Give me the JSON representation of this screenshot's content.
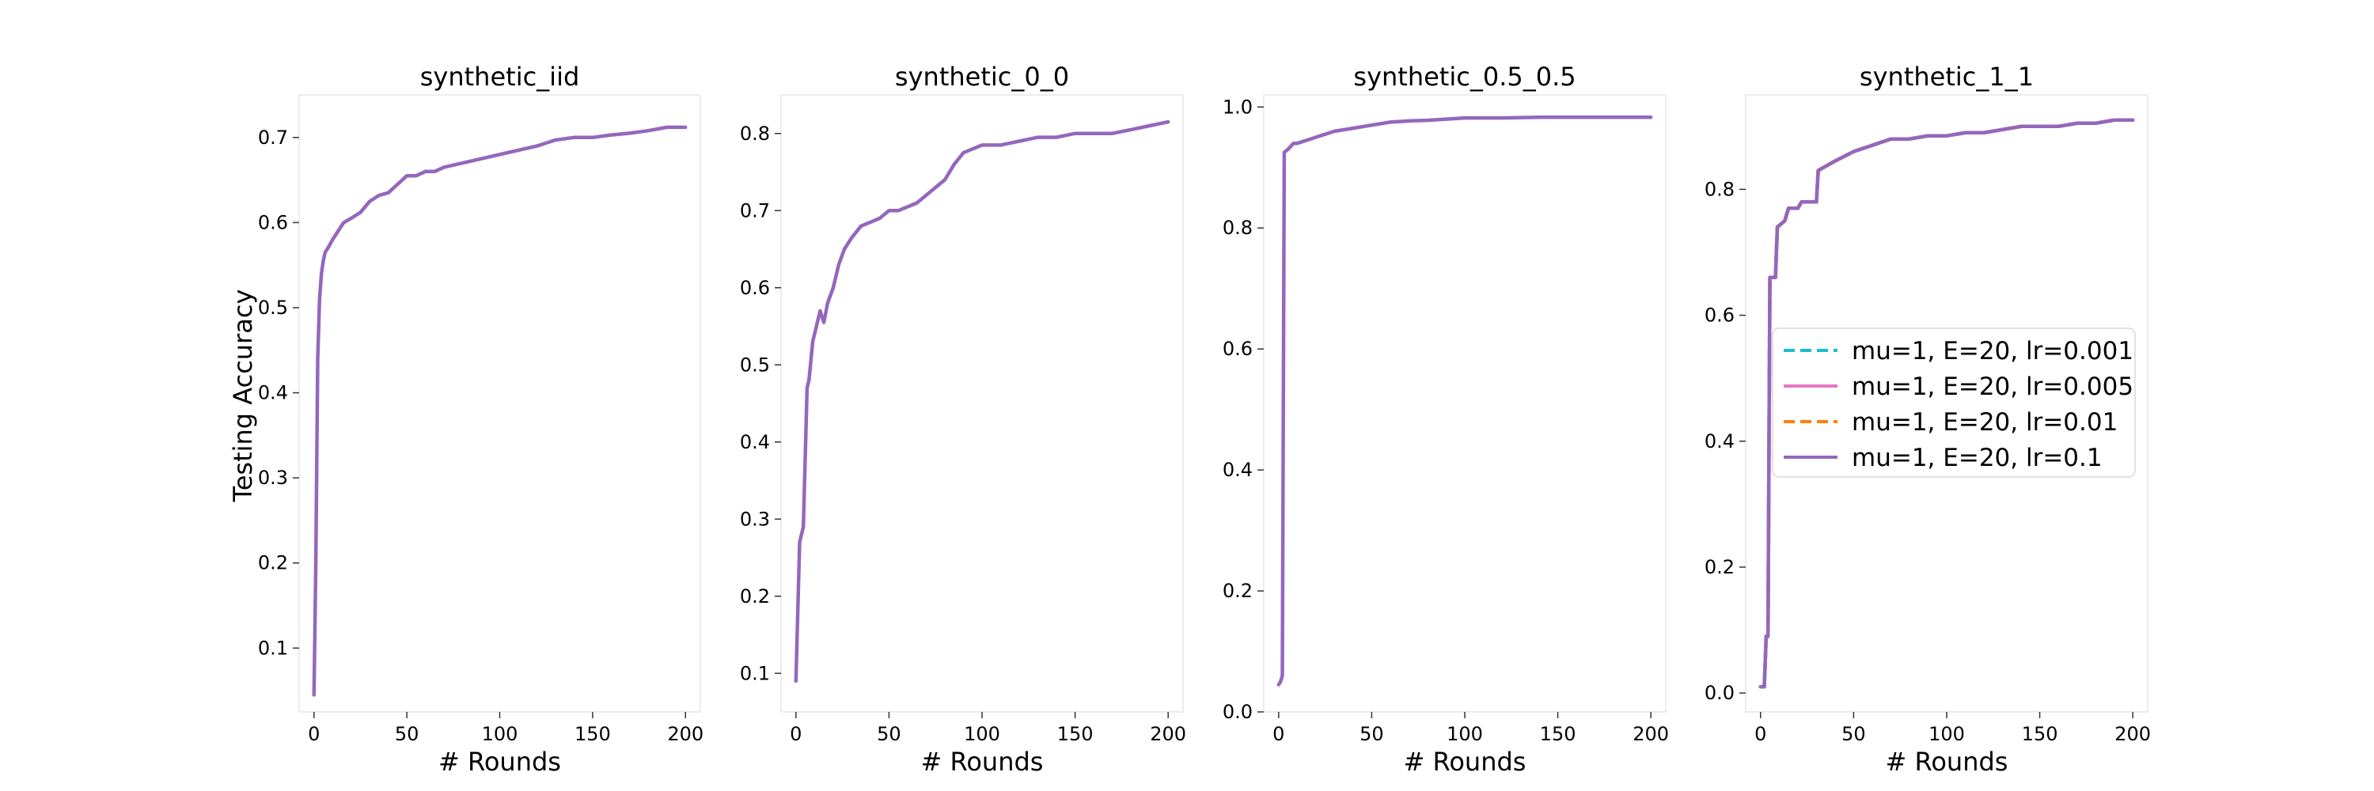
{
  "figure": {
    "ylabel": "Testing Accuracy",
    "legend": {
      "placement": "center-left of last panel",
      "entries": [
        {
          "label": "mu=1, E=20, lr=0.001",
          "color": "#17becf",
          "dash": "dashed"
        },
        {
          "label": "mu=1, E=20, lr=0.005",
          "color": "#e377c2",
          "dash": "solid"
        },
        {
          "label": "mu=1, E=20, lr=0.01",
          "color": "#ff7f0e",
          "dash": "dashed"
        },
        {
          "label": "mu=1, E=20, lr=0.1",
          "color": "#9467bd",
          "dash": "solid"
        }
      ]
    }
  },
  "chart_data": [
    {
      "type": "line",
      "title": "synthetic_iid",
      "xlabel": "# Rounds",
      "ylabel": "Testing Accuracy",
      "xlim": [
        -8,
        208
      ],
      "ylim": [
        0.025,
        0.75
      ],
      "xticks": [
        0,
        50,
        100,
        150,
        200
      ],
      "yticks": [
        0.1,
        0.2,
        0.3,
        0.4,
        0.5,
        0.6,
        0.7
      ],
      "grid": false,
      "series": [
        {
          "name": "mu=1, E=20, lr=0.1",
          "color": "#9467bd",
          "x": [
            0,
            1,
            2,
            3,
            4,
            5,
            6,
            8,
            10,
            13,
            16,
            20,
            25,
            30,
            35,
            40,
            45,
            50,
            55,
            60,
            65,
            70,
            80,
            90,
            100,
            110,
            120,
            130,
            140,
            150,
            160,
            170,
            180,
            190,
            200
          ],
          "y": [
            0.045,
            0.2,
            0.44,
            0.51,
            0.54,
            0.555,
            0.565,
            0.572,
            0.58,
            0.59,
            0.6,
            0.605,
            0.612,
            0.625,
            0.632,
            0.635,
            0.645,
            0.655,
            0.655,
            0.66,
            0.66,
            0.665,
            0.67,
            0.675,
            0.68,
            0.685,
            0.69,
            0.697,
            0.7,
            0.7,
            0.703,
            0.705,
            0.708,
            0.712,
            0.712
          ]
        }
      ]
    },
    {
      "type": "line",
      "title": "synthetic_0_0",
      "xlabel": "# Rounds",
      "xlim": [
        -8,
        208
      ],
      "ylim": [
        0.05,
        0.85
      ],
      "xticks": [
        0,
        50,
        100,
        150,
        200
      ],
      "yticks": [
        0.1,
        0.2,
        0.3,
        0.4,
        0.5,
        0.6,
        0.7,
        0.8
      ],
      "grid": false,
      "series": [
        {
          "name": "mu=1, E=20, lr=0.1",
          "color": "#9467bd",
          "x": [
            0,
            2,
            4,
            6,
            7,
            9,
            11,
            13,
            15,
            17,
            20,
            23,
            26,
            30,
            35,
            40,
            45,
            50,
            55,
            60,
            65,
            70,
            75,
            80,
            85,
            90,
            95,
            100,
            110,
            120,
            130,
            140,
            150,
            160,
            170,
            180,
            190,
            200
          ],
          "y": [
            0.09,
            0.27,
            0.29,
            0.47,
            0.48,
            0.53,
            0.55,
            0.57,
            0.555,
            0.58,
            0.6,
            0.63,
            0.65,
            0.665,
            0.68,
            0.685,
            0.69,
            0.7,
            0.7,
            0.705,
            0.71,
            0.72,
            0.73,
            0.74,
            0.76,
            0.775,
            0.78,
            0.785,
            0.785,
            0.79,
            0.795,
            0.795,
            0.8,
            0.8,
            0.8,
            0.805,
            0.81,
            0.815
          ]
        }
      ]
    },
    {
      "type": "line",
      "title": "synthetic_0.5_0.5",
      "xlabel": "# Rounds",
      "xlim": [
        -8,
        208
      ],
      "ylim": [
        0.0,
        1.02
      ],
      "xticks": [
        0,
        50,
        100,
        150,
        200
      ],
      "yticks": [
        0.0,
        0.2,
        0.4,
        0.6,
        0.8,
        1.0
      ],
      "grid": false,
      "series": [
        {
          "name": "mu=1, E=20, lr=0.1",
          "color": "#9467bd",
          "x": [
            0,
            1,
            2,
            3,
            5,
            8,
            10,
            15,
            20,
            25,
            30,
            40,
            50,
            60,
            70,
            80,
            90,
            100,
            120,
            140,
            160,
            180,
            200
          ],
          "y": [
            0.045,
            0.05,
            0.06,
            0.925,
            0.93,
            0.94,
            0.94,
            0.945,
            0.95,
            0.955,
            0.96,
            0.965,
            0.97,
            0.975,
            0.977,
            0.978,
            0.98,
            0.982,
            0.982,
            0.983,
            0.983,
            0.983,
            0.983
          ]
        }
      ]
    },
    {
      "type": "line",
      "title": "synthetic_1_1",
      "xlabel": "# Rounds",
      "xlim": [
        -8,
        208
      ],
      "ylim": [
        -0.03,
        0.95
      ],
      "xticks": [
        0,
        50,
        100,
        150,
        200
      ],
      "yticks": [
        0.0,
        0.2,
        0.4,
        0.6,
        0.8
      ],
      "grid": false,
      "series": [
        {
          "name": "mu=1, E=20, lr=0.001",
          "color": "#17becf",
          "dash": "dashed",
          "x": [
            0,
            2,
            3,
            4,
            5,
            8,
            9,
            13,
            15,
            20,
            22,
            30,
            31,
            40,
            50,
            60,
            70,
            80,
            90,
            100,
            110,
            120,
            130,
            140,
            150,
            160,
            170,
            180,
            190,
            200
          ],
          "y": [
            0.01,
            0.01,
            0.09,
            0.09,
            0.66,
            0.66,
            0.74,
            0.75,
            0.77,
            0.77,
            0.78,
            0.78,
            0.83,
            0.845,
            0.86,
            0.87,
            0.88,
            0.88,
            0.885,
            0.885,
            0.89,
            0.89,
            0.895,
            0.9,
            0.9,
            0.9,
            0.905,
            0.905,
            0.91,
            0.91
          ]
        },
        {
          "name": "mu=1, E=20, lr=0.005",
          "color": "#e377c2",
          "x": [
            0,
            2,
            3,
            4,
            5,
            8,
            9,
            13,
            15,
            20,
            22,
            30,
            31,
            40,
            50,
            60,
            70,
            80,
            90,
            100,
            110,
            120,
            130,
            140,
            150,
            160,
            170,
            180,
            190,
            200
          ],
          "y": [
            0.01,
            0.01,
            0.09,
            0.09,
            0.66,
            0.66,
            0.74,
            0.75,
            0.77,
            0.77,
            0.78,
            0.78,
            0.83,
            0.845,
            0.86,
            0.87,
            0.88,
            0.88,
            0.885,
            0.885,
            0.89,
            0.89,
            0.895,
            0.9,
            0.9,
            0.9,
            0.905,
            0.905,
            0.91,
            0.91
          ]
        },
        {
          "name": "mu=1, E=20, lr=0.01",
          "color": "#ff7f0e",
          "dash": "dashed",
          "x": [
            0,
            2,
            3,
            4,
            5,
            8,
            9,
            13,
            15,
            20,
            22,
            30,
            31,
            40,
            50,
            60,
            70,
            80,
            90,
            100,
            110,
            120,
            130,
            140,
            150,
            160,
            170,
            180,
            190,
            200
          ],
          "y": [
            0.01,
            0.01,
            0.09,
            0.09,
            0.66,
            0.66,
            0.74,
            0.75,
            0.77,
            0.77,
            0.78,
            0.78,
            0.83,
            0.845,
            0.86,
            0.87,
            0.88,
            0.88,
            0.885,
            0.885,
            0.89,
            0.89,
            0.895,
            0.9,
            0.9,
            0.9,
            0.905,
            0.905,
            0.91,
            0.91
          ]
        },
        {
          "name": "mu=1, E=20, lr=0.1",
          "color": "#9467bd",
          "x": [
            0,
            2,
            3,
            4,
            5,
            8,
            9,
            13,
            15,
            20,
            22,
            30,
            31,
            40,
            50,
            60,
            70,
            80,
            90,
            100,
            110,
            120,
            130,
            140,
            150,
            160,
            170,
            180,
            190,
            200
          ],
          "y": [
            0.01,
            0.01,
            0.09,
            0.09,
            0.66,
            0.66,
            0.74,
            0.75,
            0.77,
            0.77,
            0.78,
            0.78,
            0.83,
            0.845,
            0.86,
            0.87,
            0.88,
            0.88,
            0.885,
            0.885,
            0.89,
            0.89,
            0.895,
            0.9,
            0.9,
            0.9,
            0.905,
            0.905,
            0.91,
            0.91
          ]
        }
      ]
    }
  ]
}
